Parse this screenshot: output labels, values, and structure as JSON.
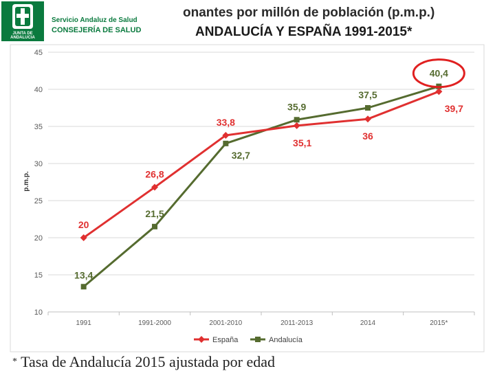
{
  "header": {
    "brand_line1": "Servicio Andaluz de Salud",
    "brand_line2": "CONSEJERÍA DE SALUD",
    "brand_logo_text": "JUNTA DE ANDALUCIA",
    "title_line1": "onantes por millón de población (p.m.p.)",
    "title_line2": "ANDALUCÍA Y ESPAÑA 1991-2015*"
  },
  "footnote": {
    "star": "*",
    "text": "Tasa de Andalucía 2015 ajustada por edad"
  },
  "chart_data": {
    "type": "line",
    "categories": [
      "1991",
      "1991-2000",
      "2001-2010",
      "2011-2013",
      "2014",
      "2015*"
    ],
    "ylabel": "p.m.p.",
    "xlabel": "",
    "ylim": [
      10,
      45
    ],
    "yticks": [
      "10",
      "15",
      "20",
      "25",
      "30",
      "35",
      "40",
      "45"
    ],
    "grid": true,
    "legend_position": "bottom",
    "series": [
      {
        "name": "España",
        "color": "#e03030",
        "marker": "diamond",
        "values": [
          20,
          26.8,
          33.8,
          35.1,
          36,
          39.7
        ],
        "labels": [
          "20",
          "26,8",
          "33,8",
          "35,1",
          "36",
          "39,7"
        ]
      },
      {
        "name": "Andalucía",
        "color": "#556b2f",
        "marker": "square",
        "values": [
          13.4,
          21.5,
          32.7,
          35.9,
          37.5,
          40.4
        ],
        "labels": [
          "13,4",
          "21,5",
          "32,7",
          "35,9",
          "37,5",
          "40,4"
        ]
      }
    ],
    "annotation": {
      "text": "40,4",
      "style": "red-ellipse-highlight"
    }
  }
}
